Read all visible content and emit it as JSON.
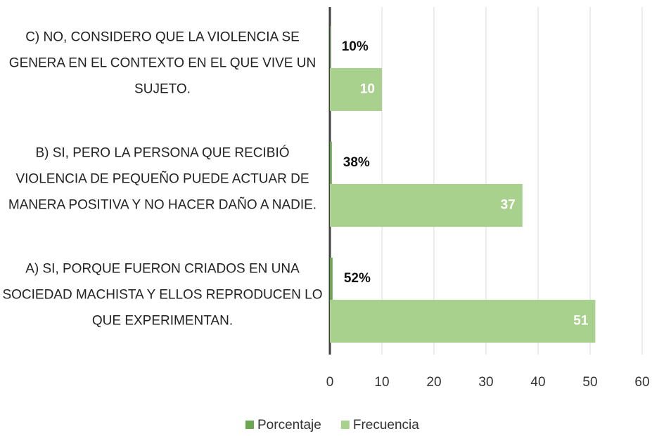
{
  "chart_data": {
    "type": "hbar",
    "categories": [
      "A) SI, PORQUE FUERON CRIADOS EN UNA SOCIEDAD MACHISTA Y ELLOS REPRODUCEN LO QUE EXPERIMENTAN.",
      "B) SI, PERO LA PERSONA QUE RECIBIÓ VIOLENCIA DE PEQUEÑO PUEDE ACTUAR DE MANERA POSITIVA Y NO HACER DAÑO A NADIE.",
      "C) NO, CONSIDERO QUE LA VIOLENCIA SE GENERA EN EL CONTEXTO EN EL QUE   VIVE UN SUJETO."
    ],
    "series": [
      {
        "name": "Porcentaje",
        "color": "#6aa84f",
        "values": [
          0.52,
          0.38,
          0.1
        ],
        "value_labels": [
          "52%",
          "38%",
          "10%"
        ]
      },
      {
        "name": "Frecuencia",
        "color": "#a9d18e",
        "values": [
          51,
          37,
          10
        ]
      }
    ],
    "xlim": [
      0,
      60
    ],
    "xticks": [
      0,
      10,
      20,
      30,
      40,
      50,
      60
    ],
    "grid": true,
    "legend": "bottom"
  }
}
